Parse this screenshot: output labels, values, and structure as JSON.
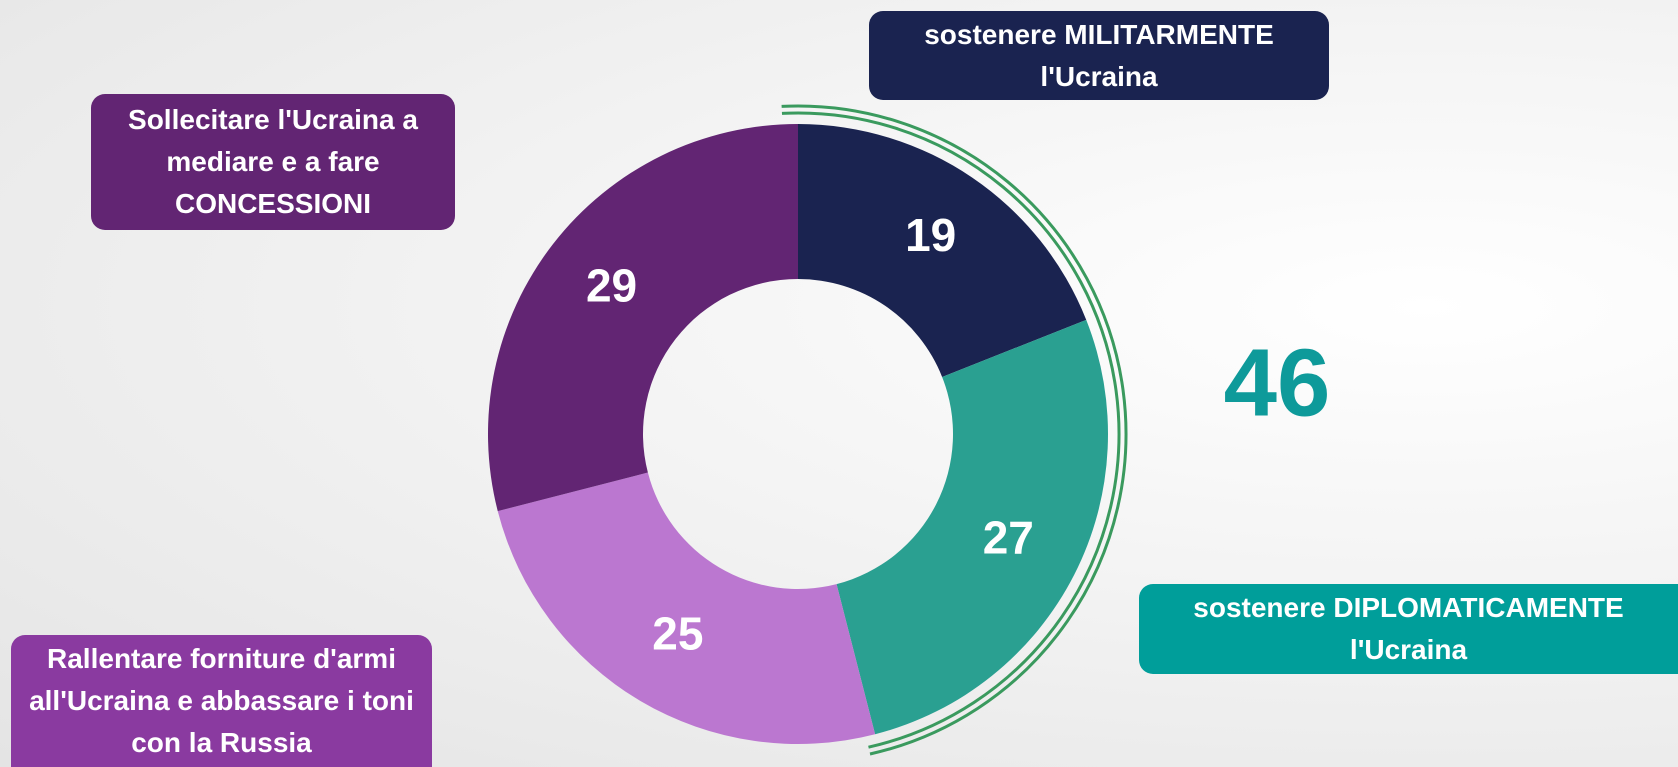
{
  "chart_data": {
    "type": "donut",
    "categories": [
      "sostenere MILITARMENTE l'Ucraina",
      "sostenere DIPLOMATICAMENTE l'Ucraina",
      "Rallentare forniture d'armi all'Ucraina e abbassare i toni con la Russia",
      "Sollecitare l'Ucraina a mediare e a fare CONCESSIONI"
    ],
    "values": [
      19,
      27,
      25,
      29
    ],
    "colors": [
      "#1a2350",
      "#2aa091",
      "#bb77d0",
      "#622573"
    ],
    "label_colors": [
      "#1a2350",
      "#009e9a",
      "#8a3aa0",
      "#622573"
    ],
    "annotation": {
      "value": 46,
      "color": "#0e9a9a",
      "bracket_color": "#3a9a5e"
    }
  }
}
